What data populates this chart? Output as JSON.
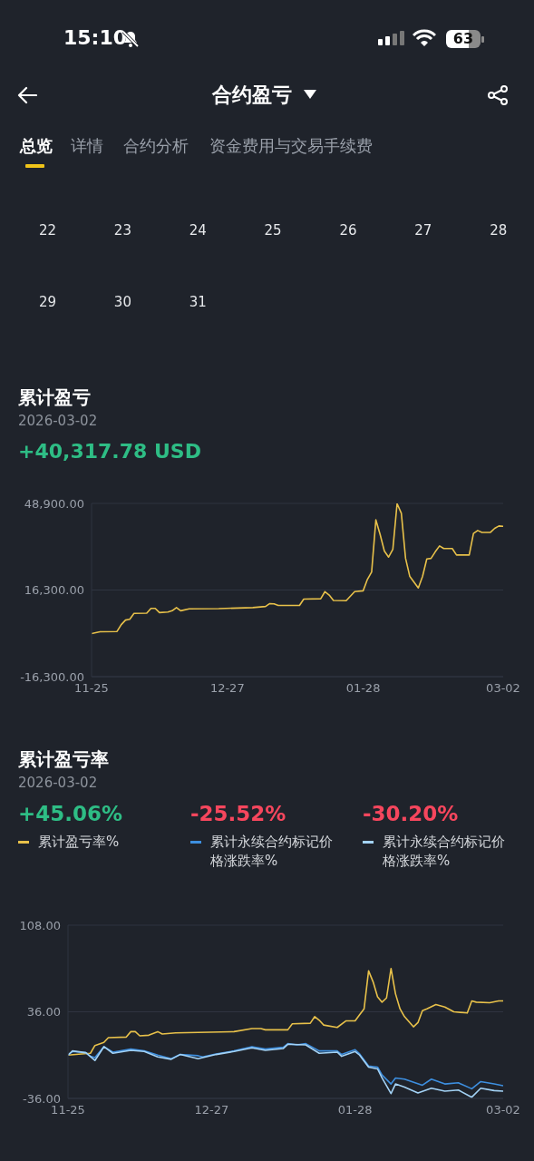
{
  "chart_data": [
    {
      "type": "other",
      "title": "合约盈亏",
      "annotations": [
        "15:10",
        "63",
        "总览",
        "详情",
        "合约分析",
        "资金费用与交易手续费",
        "22 23 24 25 26 27 28",
        "29 30 31"
      ]
    },
    {
      "type": "line",
      "title": "累计盈亏",
      "subtitle": "2026-03-02",
      "annotations": [
        "+40,317.78 USD"
      ],
      "color": "#e8c14a",
      "marker": "none",
      "grid": "y",
      "x": [
        "2025-11-25",
        "2025-11-27",
        "2025-12-01",
        "2025-12-02",
        "2025-12-03",
        "2025-12-04",
        "2025-12-05",
        "2025-12-08",
        "2025-12-09",
        "2025-12-10",
        "2025-12-11",
        "2025-12-13",
        "2025-12-14",
        "2025-12-15",
        "2025-12-16",
        "2025-12-18",
        "2025-12-25",
        "2026-01-02",
        "2026-01-05",
        "2026-01-06",
        "2026-01-07",
        "2026-01-08",
        "2026-01-13",
        "2026-01-14",
        "2026-01-18",
        "2026-01-19",
        "2026-01-20",
        "2026-01-21",
        "2026-01-24",
        "2026-01-26",
        "2026-01-28",
        "2026-01-29",
        "2026-01-30",
        "2026-01-31",
        "2026-02-01",
        "2026-02-02",
        "2026-02-03",
        "2026-02-04",
        "2026-02-05",
        "2026-02-06",
        "2026-02-07",
        "2026-02-08",
        "2026-02-10",
        "2026-02-11",
        "2026-02-12",
        "2026-02-13",
        "2026-02-14",
        "2026-02-15",
        "2026-02-16",
        "2026-02-18",
        "2026-02-19",
        "2026-02-22",
        "2026-02-23",
        "2026-02-24",
        "2026-02-25",
        "2026-02-27",
        "2026-02-28",
        "2026-03-01",
        "2026-03-02"
      ],
      "values": [
        -100,
        600,
        700,
        3300,
        5000,
        5300,
        7500,
        7600,
        9400,
        9400,
        7800,
        8000,
        8500,
        9700,
        8500,
        9200,
        9300,
        9700,
        10100,
        11200,
        11100,
        10500,
        10500,
        12900,
        13000,
        15700,
        14400,
        12400,
        12300,
        15700,
        16000,
        20300,
        23100,
        42700,
        37200,
        31000,
        28700,
        31600,
        48800,
        45200,
        28200,
        21400,
        17100,
        21400,
        28000,
        28200,
        30700,
        32900,
        31900,
        31900,
        29500,
        29500,
        37600,
        38700,
        38000,
        38000,
        39500,
        40400,
        40300
      ],
      "xlim": [
        "2025-11-25",
        "2026-03-02"
      ],
      "xticks": [
        {
          "value": "2025-11-25",
          "label": "11-25"
        },
        {
          "value": "2025-12-27",
          "label": "12-27"
        },
        {
          "value": "2026-01-28",
          "label": "01-28"
        },
        {
          "value": "2026-03-02",
          "label": "03-02"
        }
      ],
      "ylim": [
        -16300,
        48900
      ],
      "yticks": [
        {
          "value": -16300,
          "label": "-16,300.00"
        },
        {
          "value": 16300,
          "label": "16,300.00"
        },
        {
          "value": 48900,
          "label": "48,900.00"
        }
      ]
    },
    {
      "type": "line",
      "title": "累计盈亏率",
      "subtitle": "2026-03-02",
      "marker": "none",
      "grid": "y",
      "legend": "top",
      "annotations": [
        "+45.06%",
        "-25.52%",
        "-30.20%"
      ],
      "series": [
        {
          "name": "累计盈亏率%",
          "color": "#e8c14a",
          "x": [
            "2025-11-25",
            "2025-11-28",
            "2025-11-30",
            "2025-12-01",
            "2025-12-03",
            "2025-12-04",
            "2025-12-08",
            "2025-12-09",
            "2025-12-10",
            "2025-12-11",
            "2025-12-13",
            "2025-12-15",
            "2025-12-16",
            "2025-12-19",
            "2026-01-01",
            "2026-01-05",
            "2026-01-07",
            "2026-01-08",
            "2026-01-13",
            "2026-01-14",
            "2026-01-18",
            "2026-01-19",
            "2026-01-20",
            "2026-01-21",
            "2026-01-24",
            "2026-01-26",
            "2026-01-28",
            "2026-01-29",
            "2026-01-30",
            "2026-01-31",
            "2026-02-01",
            "2026-02-02",
            "2026-02-03",
            "2026-02-04",
            "2026-02-05",
            "2026-02-06",
            "2026-02-07",
            "2026-02-08",
            "2026-02-10",
            "2026-02-11",
            "2026-02-12",
            "2026-02-13",
            "2026-02-15",
            "2026-02-17",
            "2026-02-19",
            "2026-02-22",
            "2026-02-23",
            "2026-02-24",
            "2026-02-27",
            "2026-03-01",
            "2026-03-02"
          ],
          "values": [
            0,
            1,
            1.5,
            8,
            10.5,
            14.5,
            15,
            19.5,
            19.5,
            16,
            16.5,
            19.5,
            17.5,
            18.5,
            19.5,
            22,
            22,
            21,
            21,
            26,
            26.5,
            32,
            29,
            25,
            23,
            28.5,
            28.5,
            33.5,
            38.5,
            70,
            61,
            48.5,
            44,
            47.5,
            72,
            51,
            38.5,
            32,
            23.5,
            27,
            37,
            38.5,
            42,
            40,
            36,
            35,
            45,
            44,
            43.5,
            45,
            45
          ]
        },
        {
          "name": "累计永续合约标记价格涨跌率%",
          "color": "#3d8fe0",
          "x": [
            "2025-11-25",
            "2025-11-26",
            "2025-11-29",
            "2025-11-30",
            "2025-12-01",
            "2025-12-03",
            "2025-12-05",
            "2025-12-09",
            "2025-12-12",
            "2025-12-15",
            "2025-12-18",
            "2025-12-20",
            "2025-12-24",
            "2025-12-25",
            "2025-12-28",
            "2026-01-01",
            "2026-01-05",
            "2026-01-08",
            "2026-01-12",
            "2026-01-13",
            "2026-01-15",
            "2026-01-17",
            "2026-01-20",
            "2026-01-24",
            "2026-01-25",
            "2026-01-28",
            "2026-01-29",
            "2026-01-31",
            "2026-02-02",
            "2026-02-03",
            "2026-02-05",
            "2026-02-06",
            "2026-02-08",
            "2026-02-12",
            "2026-02-14",
            "2026-02-17",
            "2026-02-20",
            "2026-02-23",
            "2026-02-25",
            "2026-02-28",
            "2026-03-02"
          ],
          "values": [
            0,
            3,
            2,
            -1,
            -2,
            7,
            2.5,
            5,
            3.5,
            0,
            -3,
            0.5,
            -0.5,
            -1.5,
            1,
            3.5,
            7,
            5,
            6.5,
            9.5,
            8.5,
            9.5,
            3.5,
            3.5,
            0.5,
            4.5,
            1,
            -9,
            -10,
            -16.5,
            -24,
            -19,
            -20,
            -25,
            -20,
            -24,
            -23,
            -28,
            -22,
            -24,
            -25.5
          ]
        },
        {
          "name": "累计永续合约标记价格涨跌率%",
          "color": "#a3d2f5",
          "x": [
            "2025-11-25",
            "2025-11-26",
            "2025-11-29",
            "2025-12-01",
            "2025-12-03",
            "2025-12-05",
            "2025-12-09",
            "2025-12-12",
            "2025-12-15",
            "2025-12-18",
            "2025-12-20",
            "2025-12-24",
            "2025-12-28",
            "2026-01-01",
            "2026-01-05",
            "2026-01-08",
            "2026-01-12",
            "2026-01-13",
            "2026-01-17",
            "2026-01-20",
            "2026-01-24",
            "2026-01-25",
            "2026-01-28",
            "2026-01-29",
            "2026-01-31",
            "2026-02-02",
            "2026-02-03",
            "2026-02-05",
            "2026-02-06",
            "2026-02-08",
            "2026-02-11",
            "2026-02-14",
            "2026-02-17",
            "2026-02-20",
            "2026-02-23",
            "2026-02-25",
            "2026-02-28",
            "2026-03-02"
          ],
          "values": [
            0,
            3.5,
            2,
            -4.5,
            7,
            1.5,
            4,
            3,
            -1.5,
            -3.5,
            0.5,
            -3,
            0.5,
            3,
            6,
            4,
            5.5,
            9,
            8.5,
            1.5,
            2.5,
            -1,
            3,
            0,
            -10,
            -11.5,
            -19,
            -32,
            -24,
            -26.5,
            -31.5,
            -27.5,
            -30,
            -29,
            -35,
            -27.5,
            -29.5,
            -30
          ]
        }
      ],
      "xlim": [
        "2025-11-25",
        "2026-03-02"
      ],
      "xticks": [
        {
          "value": "2025-11-25",
          "label": "11-25"
        },
        {
          "value": "2025-12-27",
          "label": "12-27"
        },
        {
          "value": "2026-01-28",
          "label": "01-28"
        },
        {
          "value": "2026-03-02",
          "label": "03-02"
        }
      ],
      "ylim": [
        -36,
        108
      ],
      "yticks": [
        {
          "value": -36,
          "label": "-36.00"
        },
        {
          "value": 36,
          "label": "36.00"
        },
        {
          "value": 108,
          "label": "108.00"
        }
      ]
    }
  ]
}
